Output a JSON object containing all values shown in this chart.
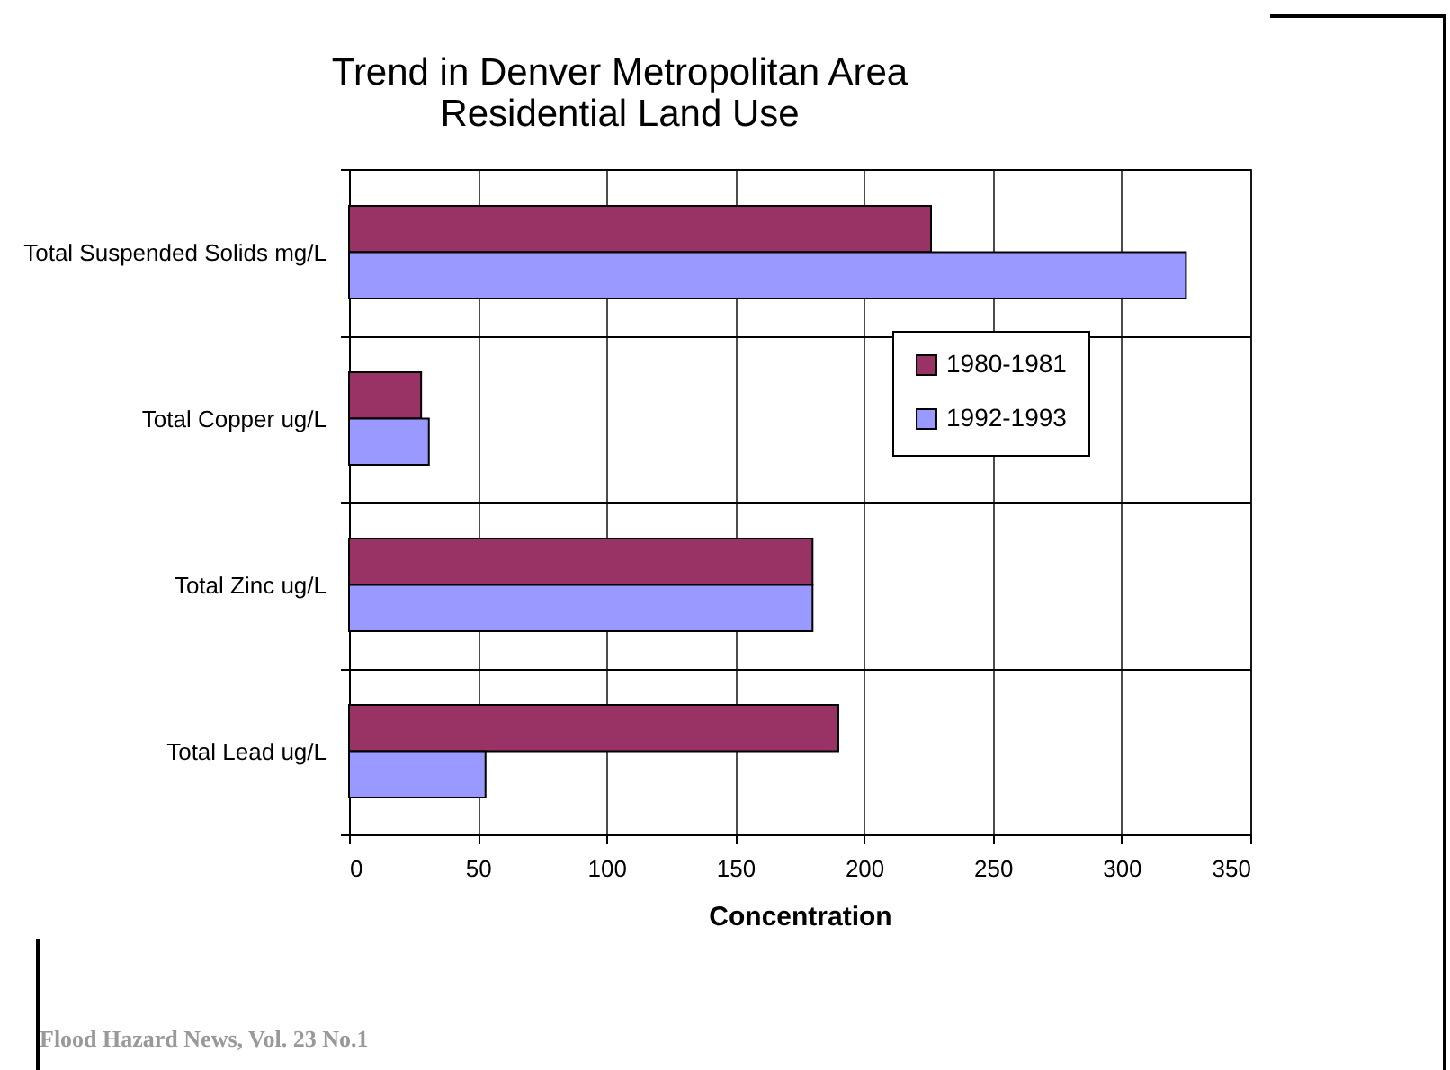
{
  "chart_data": {
    "type": "bar",
    "orientation": "horizontal",
    "title": [
      "Trend in Denver Metropolitan Area",
      "Residential Land Use"
    ],
    "xlabel": "Concentration",
    "categories": [
      "Total Suspended Solids mg/L",
      "Total Copper ug/L",
      "Total Zinc ug/L",
      "Total Lead ug/L"
    ],
    "series": [
      {
        "name": "1980-1981",
        "color": "#993366",
        "values": [
          226,
          28,
          180,
          190
        ]
      },
      {
        "name": "1992-1993",
        "color": "#9999ff",
        "values": [
          325,
          31,
          180,
          53
        ]
      }
    ],
    "xlim": [
      0,
      350
    ],
    "xticks": [
      0,
      50,
      100,
      150,
      200,
      250,
      300,
      350
    ],
    "grid": true,
    "legend": "right",
    "annotations": [
      "Flood Hazard News, Vol. 23 No.1"
    ]
  }
}
